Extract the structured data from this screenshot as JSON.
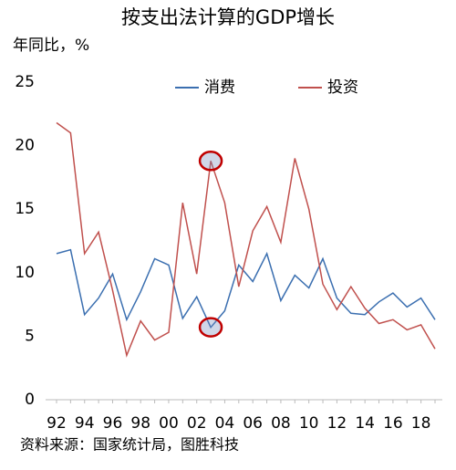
{
  "chart_data": {
    "type": "line",
    "title": "按支出法计算的GDP增长",
    "y_label": "年同比，%",
    "source": "资料来源：国家统计局，图胜科技",
    "categories": [
      "92",
      null,
      "94",
      null,
      "96",
      null,
      "98",
      null,
      "00",
      null,
      "02",
      null,
      "04",
      null,
      "06",
      null,
      "08",
      null,
      "10",
      null,
      "12",
      null,
      "14",
      null,
      "16",
      null,
      "18",
      null
    ],
    "series": [
      {
        "name": "消费",
        "color": "#3b6fb0",
        "values": [
          11.5,
          11.8,
          6.7,
          8.0,
          9.9,
          6.3,
          8.5,
          11.1,
          10.6,
          6.4,
          8.1,
          5.7,
          7.0,
          10.6,
          9.3,
          11.5,
          7.8,
          9.8,
          8.8,
          11.1,
          8.0,
          6.8,
          6.7,
          7.7,
          8.4,
          7.3,
          8.0,
          6.3
        ]
      },
      {
        "name": "投资",
        "color": "#c0504d",
        "values": [
          21.8,
          21.0,
          11.5,
          13.2,
          8.6,
          3.5,
          6.2,
          4.7,
          5.3,
          15.5,
          9.9,
          18.8,
          15.5,
          8.9,
          13.3,
          15.2,
          12.4,
          19.0,
          15.0,
          9.1,
          7.1,
          8.9,
          7.2,
          6.0,
          6.3,
          5.5,
          5.9,
          4.0
        ]
      }
    ],
    "ylim": [
      0,
      25
    ],
    "yticks": [
      0,
      5,
      10,
      15,
      20,
      25
    ],
    "legend": "top"
  }
}
